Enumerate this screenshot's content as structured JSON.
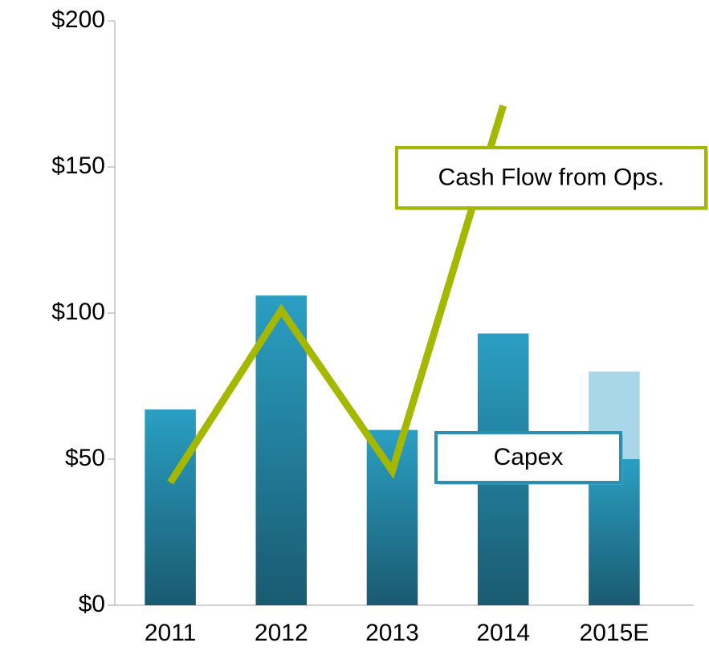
{
  "chart_data": {
    "type": "bar",
    "categories": [
      "2011",
      "2012",
      "2013",
      "2014",
      "2015E"
    ],
    "series": [
      {
        "name": "Capex",
        "color": "#2a9fc3",
        "values": [
          67,
          106,
          60,
          93,
          50
        ]
      },
      {
        "color": "#a8d8e8",
        "values": [
          null,
          null,
          null,
          null,
          30
        ]
      },
      {
        "name": "Cash Flow from Ops.",
        "type": "line",
        "color": "#a5b800",
        "values": [
          42,
          101,
          46,
          171,
          null
        ]
      }
    ],
    "ylim": [
      0,
      200
    ],
    "yticks": [
      {
        "value": 0,
        "label": "$0"
      },
      {
        "value": 50,
        "label": "$50"
      },
      {
        "value": 100,
        "label": "$100"
      },
      {
        "value": 150,
        "label": "$150"
      },
      {
        "value": 200,
        "label": "$200"
      }
    ],
    "grid": false
  }
}
